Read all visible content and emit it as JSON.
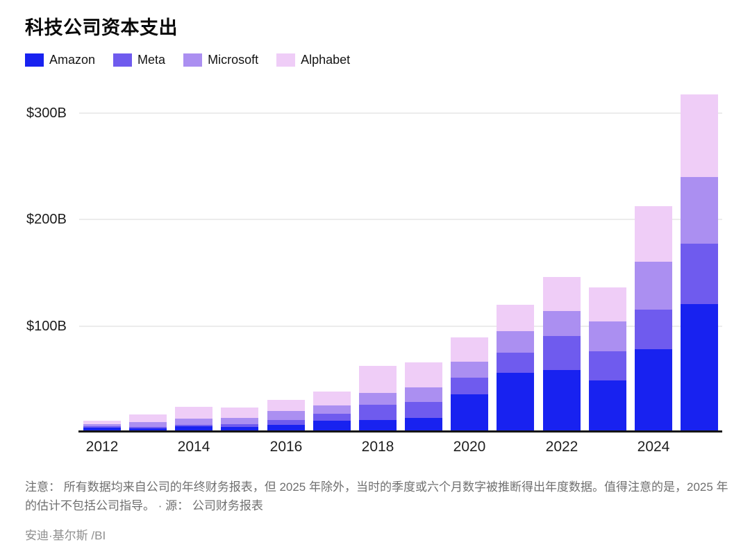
{
  "chart_data": {
    "type": "bar",
    "stacked": true,
    "title": "科技公司资本支出",
    "unit": "billions USD",
    "legend_position": "top",
    "grid": true,
    "ylim": [
      0,
      330
    ],
    "categories": [
      2012,
      2013,
      2014,
      2015,
      2016,
      2017,
      2018,
      2019,
      2020,
      2021,
      2022,
      2023,
      2024,
      2025
    ],
    "series": [
      {
        "name": "Amazon",
        "color": "#1822f0",
        "values": [
          3.8,
          3.4,
          4.9,
          4.6,
          6.7,
          10.1,
          11.3,
          12.7,
          35.0,
          55.4,
          58.3,
          48.1,
          77.7,
          120.0
        ]
      },
      {
        "name": "Meta",
        "color": "#6f5bee",
        "values": [
          1.2,
          1.4,
          1.8,
          2.5,
          4.5,
          6.7,
          13.9,
          15.1,
          15.7,
          18.6,
          31.4,
          27.3,
          37.3,
          56.5
        ]
      },
      {
        "name": "Microsoft",
        "color": "#ab8ff1",
        "values": [
          2.3,
          4.3,
          5.5,
          5.9,
          8.3,
          8.1,
          11.6,
          13.9,
          15.4,
          20.6,
          23.9,
          28.1,
          44.5,
          62.5
        ]
      },
      {
        "name": "Alphabet",
        "color": "#efcdf7",
        "values": [
          3.3,
          7.4,
          11.0,
          9.9,
          10.2,
          13.2,
          25.1,
          23.5,
          22.3,
          24.6,
          31.5,
          32.3,
          52.5,
          78.0
        ]
      }
    ],
    "y_ticks": [
      {
        "value": 100,
        "label": "$100B"
      },
      {
        "value": 200,
        "label": "$200B"
      },
      {
        "value": 300,
        "label": "$300B"
      }
    ],
    "x_tick_labels": [
      "2012",
      "2014",
      "2016",
      "2018",
      "2020",
      "2022",
      "2024"
    ]
  },
  "footer": {
    "note": "注意： 所有数据均来自公司的年终财务报表，但 2025 年除外，当时的季度或六个月数字被推断得出年度数据。值得注意的是，2025 年的估计不包括公司指导。 · 源： 公司财务报表",
    "byline": "安迪·基尔斯 /BI"
  },
  "colors": {
    "axis": "#151515",
    "gridline": "#ececec",
    "note_text": "#6f6f6f",
    "byline_text": "#8f8f8f"
  }
}
